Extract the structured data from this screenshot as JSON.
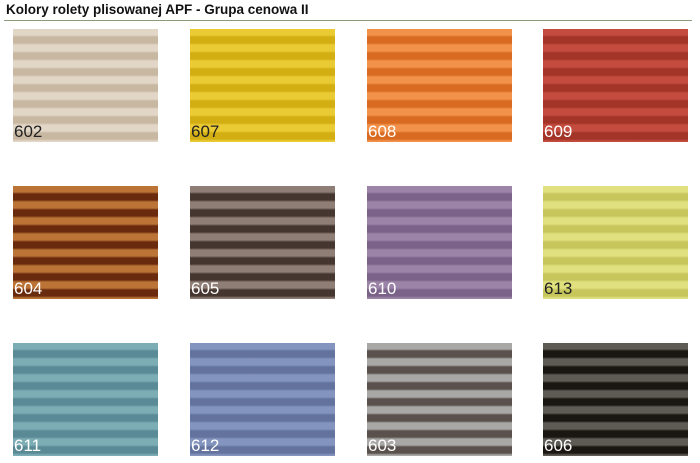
{
  "header": {
    "title": "Kolory rolety plisowanej APF - Grupa cenowa II"
  },
  "swatches": [
    {
      "code": "602",
      "light": "#e2d6c6",
      "dark": "#c8b8a2",
      "text": "#222222"
    },
    {
      "code": "607",
      "light": "#ebcb34",
      "dark": "#d2ae12",
      "text": "#222222"
    },
    {
      "code": "608",
      "light": "#f2924a",
      "dark": "#d96a22",
      "text": "#ffffff"
    },
    {
      "code": "609",
      "light": "#c44c3e",
      "dark": "#a33428",
      "text": "#ffffff"
    },
    {
      "code": "604",
      "light": "#bc7436",
      "dark": "#6a2a0e",
      "text": "#ffffff"
    },
    {
      "code": "605",
      "light": "#8e7e76",
      "dark": "#463630",
      "text": "#ffffff"
    },
    {
      "code": "610",
      "light": "#9c84a8",
      "dark": "#7a6288",
      "text": "#ffffff"
    },
    {
      "code": "613",
      "light": "#e0e07e",
      "dark": "#c6c65c",
      "text": "#222222"
    },
    {
      "code": "611",
      "light": "#7cadb5",
      "dark": "#5a8a95",
      "text": "#ffffff"
    },
    {
      "code": "612",
      "light": "#8394be",
      "dark": "#63739e",
      "text": "#ffffff"
    },
    {
      "code": "603",
      "light": "#aaa8a6",
      "dark": "#5a504c",
      "text": "#ffffff"
    },
    {
      "code": "606",
      "light": "#5e5a54",
      "dark": "#1a1612",
      "text": "#ffffff"
    }
  ]
}
